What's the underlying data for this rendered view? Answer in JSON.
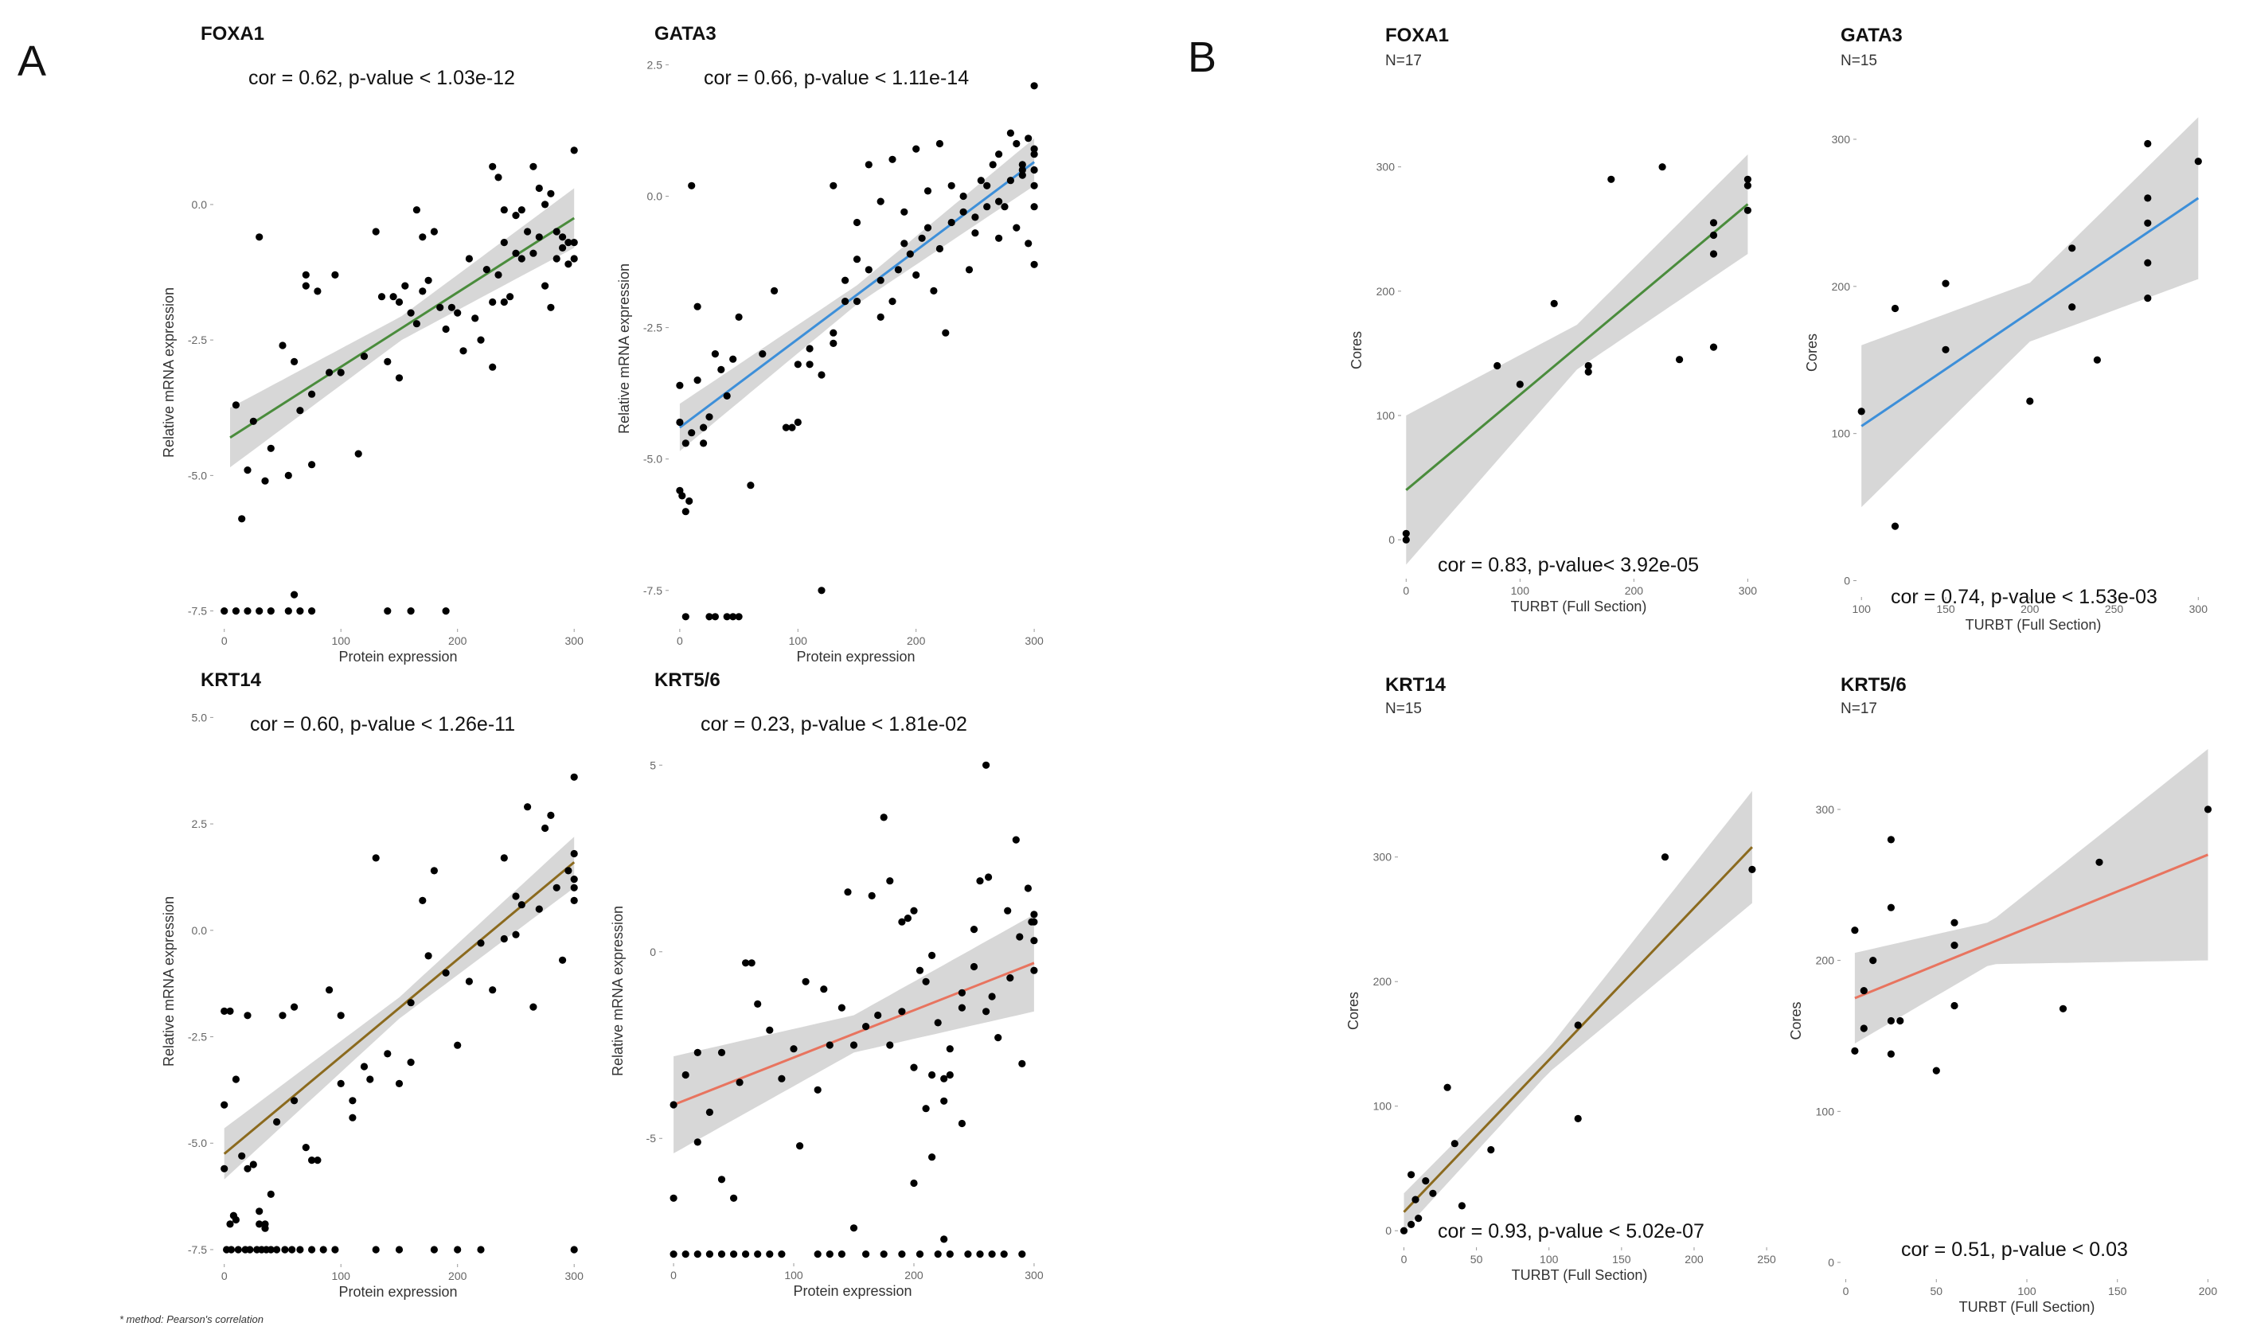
{
  "panel_letters": {
    "a": "A",
    "b": "B"
  },
  "footnote": "* method: Pearson's correlation",
  "chart_data": [
    {
      "id": "a1",
      "type": "scatter",
      "panel": "A",
      "title": "FOXA1",
      "n_label": "",
      "annotation": "cor = 0.62, p-value < 1.03e-12",
      "xlabel": "Protein expression",
      "ylabel": "Relative mRNA expression",
      "xlim": [
        -8,
        306
      ],
      "ylim": [
        -7.8,
        1.6
      ],
      "xticks": [
        0,
        100,
        200,
        300
      ],
      "yticks": [
        -7.5,
        -5.0,
        -2.5,
        0.0
      ],
      "xtick_labels": [
        "0",
        "100",
        "200",
        "300"
      ],
      "ytick_labels": [
        "-7.5",
        "-5.0",
        "-2.5",
        "0.0"
      ],
      "fit": {
        "x0": 5,
        "y0": -4.3,
        "x1": 300,
        "y1": -0.25,
        "band_x": [
          5,
          152,
          300
        ],
        "band_half": [
          0.55,
          0.22,
          0.55
        ],
        "color": "#4a8c3c"
      },
      "x": [
        10,
        20,
        25,
        30,
        40,
        50,
        60,
        65,
        70,
        80,
        90,
        100,
        120,
        130,
        140,
        150,
        160,
        170,
        180,
        190,
        200,
        210,
        220,
        230,
        240,
        250,
        260,
        270,
        280,
        290,
        300,
        300,
        15,
        35,
        55,
        75,
        95,
        115,
        135,
        145,
        155,
        165,
        175,
        185,
        195,
        205,
        215,
        225,
        235,
        245,
        255,
        265,
        275,
        285,
        295,
        60,
        70,
        75,
        230,
        235,
        240,
        250,
        255,
        265,
        270,
        275,
        280,
        285,
        290,
        295,
        300,
        150,
        165,
        170,
        230,
        240,
        0,
        10,
        20,
        30,
        40,
        55,
        65,
        75,
        140,
        160,
        190
      ],
      "y": [
        -3.7,
        -4.9,
        -4.0,
        -0.6,
        -4.5,
        -2.6,
        -2.9,
        -3.8,
        -1.3,
        -1.6,
        -3.1,
        -3.1,
        -2.8,
        -0.5,
        -2.9,
        -1.8,
        -2.0,
        -1.6,
        -0.5,
        -2.3,
        -2.0,
        -1.0,
        -2.5,
        -1.8,
        -0.1,
        -0.9,
        -0.5,
        -0.6,
        -1.9,
        -0.6,
        -0.7,
        1.0,
        -5.8,
        -5.1,
        -5.0,
        -4.8,
        -1.3,
        -4.6,
        -1.7,
        -1.7,
        -1.5,
        -2.2,
        -1.4,
        -1.9,
        -1.9,
        -2.7,
        -2.1,
        -1.2,
        -1.3,
        -1.7,
        -1.0,
        -0.9,
        -1.5,
        -1.0,
        -0.7,
        -7.2,
        -1.5,
        -3.5,
        0.7,
        0.5,
        -0.7,
        -0.2,
        -0.1,
        0.7,
        0.3,
        0.0,
        0.2,
        -0.5,
        -0.8,
        -1.1,
        -1.0,
        -3.2,
        -0.1,
        -0.6,
        -3.0,
        -1.8,
        -7.5,
        -7.5,
        -7.5,
        -7.5,
        -7.5,
        -7.5,
        -7.5,
        -7.5,
        -7.5,
        -7.5,
        -7.5
      ]
    },
    {
      "id": "a2",
      "type": "scatter",
      "panel": "A",
      "title": "GATA3",
      "n_label": "",
      "annotation": "cor = 0.66, p-value < 1.11e-14",
      "xlabel": "Protein expression",
      "ylabel": "Relative mRNA expression",
      "xlim": [
        -8,
        306
      ],
      "ylim": [
        -8.2,
        2.4
      ],
      "xticks": [
        0,
        100,
        200,
        300
      ],
      "yticks": [
        -7.5,
        -5.0,
        -2.5,
        0.0,
        2.5
      ],
      "xtick_labels": [
        "0",
        "100",
        "200",
        "300"
      ],
      "ytick_labels": [
        "-7.5",
        "-5.0",
        "-2.5",
        "0.0",
        "2.5"
      ],
      "fit": {
        "x0": 0,
        "y0": -4.4,
        "x1": 300,
        "y1": 0.65,
        "band_x": [
          0,
          150,
          300
        ],
        "band_half": [
          0.45,
          0.18,
          0.45
        ],
        "color": "#3d8fd9"
      },
      "x": [
        0,
        0,
        5,
        10,
        15,
        20,
        25,
        30,
        35,
        40,
        45,
        50,
        60,
        70,
        80,
        90,
        100,
        110,
        120,
        130,
        140,
        150,
        160,
        170,
        180,
        190,
        200,
        210,
        220,
        230,
        240,
        250,
        260,
        270,
        280,
        290,
        300,
        300,
        300,
        300,
        0,
        2,
        5,
        8,
        95,
        100,
        120,
        140,
        160,
        180,
        200,
        220,
        240,
        260,
        270,
        280,
        290,
        295,
        300,
        130,
        150,
        170,
        190,
        210,
        230,
        250,
        270,
        285,
        295,
        300,
        110,
        130,
        150,
        170,
        185,
        195,
        205,
        215,
        225,
        245,
        255,
        265,
        275,
        285,
        290,
        300,
        5,
        10,
        15,
        20,
        25,
        30,
        40,
        45,
        50
      ],
      "y": [
        -3.6,
        -4.3,
        -4.7,
        -4.5,
        -3.5,
        -4.4,
        -4.2,
        -3.0,
        -3.3,
        -3.8,
        -3.1,
        -2.3,
        -5.5,
        -3.0,
        -1.8,
        -4.4,
        -3.2,
        -2.9,
        -3.4,
        -2.6,
        -2.0,
        -1.2,
        -1.4,
        -1.6,
        -2.0,
        -0.9,
        -1.5,
        -0.6,
        -1.0,
        -0.5,
        -0.3,
        -0.7,
        0.2,
        -0.1,
        0.3,
        0.5,
        0.8,
        0.5,
        0.2,
        -0.2,
        -5.6,
        -5.7,
        -6.0,
        -5.8,
        -4.4,
        -4.3,
        -7.5,
        -1.6,
        0.6,
        0.7,
        0.9,
        1.0,
        0.0,
        -0.2,
        0.8,
        1.2,
        0.6,
        1.1,
        2.1,
        0.2,
        -0.5,
        -0.1,
        -0.3,
        0.1,
        0.2,
        -0.4,
        -0.8,
        -0.6,
        -0.9,
        -1.3,
        -3.2,
        -2.8,
        -2.0,
        -2.3,
        -1.4,
        -1.1,
        -0.8,
        -1.8,
        -2.6,
        -1.4,
        0.3,
        0.6,
        -0.2,
        1.0,
        0.4,
        0.9,
        -8.0,
        0.2,
        -2.1,
        -4.7,
        -8.0,
        -8.0,
        -8.0,
        -8.0,
        -8.0
      ]
    },
    {
      "id": "a3",
      "type": "scatter",
      "panel": "A",
      "title": "KRT14",
      "n_label": "",
      "annotation": "cor = 0.60, p-value < 1.26e-11",
      "xlabel": "Protein expression",
      "ylabel": "Relative mRNA expression",
      "xlim": [
        -8,
        306
      ],
      "ylim": [
        -7.8,
        5.4
      ],
      "xticks": [
        0,
        100,
        200,
        300
      ],
      "yticks": [
        -7.5,
        -5.0,
        -2.5,
        0.0,
        2.5,
        5.0
      ],
      "xtick_labels": [
        "0",
        "100",
        "200",
        "300"
      ],
      "ytick_labels": [
        "-7.5",
        "-5.0",
        "-2.5",
        "0.0",
        "2.5",
        "5.0"
      ],
      "fit": {
        "x0": 0,
        "y0": -5.25,
        "x1": 300,
        "y1": 1.6,
        "band_x": [
          0,
          150,
          300
        ],
        "band_half": [
          0.6,
          0.25,
          0.6
        ],
        "color": "#8b6a1e"
      },
      "x": [
        0,
        0,
        5,
        8,
        10,
        15,
        20,
        25,
        30,
        35,
        40,
        45,
        50,
        60,
        70,
        80,
        90,
        100,
        110,
        120,
        130,
        140,
        150,
        160,
        170,
        180,
        190,
        200,
        210,
        220,
        230,
        240,
        250,
        260,
        270,
        280,
        290,
        300,
        300,
        300,
        0,
        5,
        10,
        20,
        30,
        35,
        60,
        75,
        100,
        110,
        125,
        160,
        175,
        240,
        250,
        255,
        265,
        275,
        285,
        295,
        300,
        300,
        2,
        6,
        12,
        18,
        22,
        28,
        32,
        36,
        40,
        45,
        52,
        58,
        65,
        75,
        85,
        95,
        130,
        150,
        180,
        200,
        220,
        300
      ],
      "y": [
        -4.1,
        -5.6,
        -6.9,
        -6.7,
        -6.8,
        -5.3,
        -5.6,
        -5.5,
        -6.6,
        -6.9,
        -6.2,
        -4.5,
        -2.0,
        -4.0,
        -5.1,
        -5.4,
        -1.4,
        -3.6,
        -4.0,
        -3.2,
        1.7,
        -2.9,
        -3.6,
        -1.7,
        0.7,
        1.4,
        -1.0,
        -2.7,
        -1.2,
        -0.3,
        -1.4,
        1.7,
        -0.1,
        2.9,
        0.5,
        2.7,
        -0.7,
        1.0,
        1.2,
        3.6,
        -1.9,
        -1.9,
        -3.5,
        -2.0,
        -6.9,
        -7.0,
        -1.8,
        -5.4,
        -2.0,
        -4.4,
        -3.5,
        -3.1,
        -0.6,
        -0.2,
        0.8,
        0.6,
        -1.8,
        2.4,
        1.0,
        1.4,
        1.8,
        0.7,
        -7.5,
        -7.5,
        -7.5,
        -7.5,
        -7.5,
        -7.5,
        -7.5,
        -7.5,
        -7.5,
        -7.5,
        -7.5,
        -7.5,
        -7.5,
        -7.5,
        -7.5,
        -7.5,
        -7.5,
        -7.5,
        -7.5,
        -7.5,
        -7.5,
        -7.5
      ]
    },
    {
      "id": "a4",
      "type": "scatter",
      "panel": "A",
      "title": "KRT5/6",
      "n_label": "",
      "annotation": "cor = 0.23, p-value < 1.81e-02",
      "xlabel": "Protein expression",
      "ylabel": "Relative mRNA expression",
      "xlim": [
        -8,
        306
      ],
      "ylim": [
        -8.3,
        6.2
      ],
      "xticks": [
        0,
        100,
        200,
        300
      ],
      "yticks": [
        -5,
        0,
        5
      ],
      "xtick_labels": [
        "0",
        "100",
        "200",
        "300"
      ],
      "ytick_labels": [
        "-5",
        "0",
        "5"
      ],
      "fit": {
        "x0": 0,
        "y0": -4.1,
        "x1": 300,
        "y1": -0.3,
        "band_x": [
          0,
          150,
          300
        ],
        "band_half": [
          1.3,
          0.5,
          1.3
        ],
        "color": "#e8745f"
      },
      "x": [
        0,
        0,
        10,
        20,
        30,
        40,
        50,
        55,
        60,
        65,
        70,
        80,
        90,
        100,
        110,
        120,
        125,
        130,
        140,
        150,
        160,
        170,
        180,
        190,
        200,
        205,
        210,
        215,
        220,
        225,
        230,
        240,
        250,
        260,
        265,
        270,
        280,
        290,
        300,
        300,
        300,
        300,
        20,
        40,
        105,
        145,
        180,
        195,
        240,
        255,
        285,
        295,
        150,
        165,
        175,
        190,
        200,
        215,
        230,
        250,
        262,
        278,
        288,
        298,
        0,
        10,
        20,
        30,
        40,
        50,
        60,
        70,
        80,
        90,
        120,
        130,
        140,
        160,
        175,
        190,
        205,
        220,
        230,
        245,
        255,
        265,
        275,
        290,
        210,
        225,
        240,
        200,
        215,
        225,
        260
      ],
      "y": [
        -4.1,
        -6.6,
        -3.3,
        -2.7,
        -4.3,
        -2.7,
        -6.6,
        -3.5,
        -0.3,
        -0.3,
        -1.4,
        -2.1,
        -3.4,
        -2.6,
        -0.8,
        -3.7,
        -1.0,
        -2.5,
        -1.5,
        -2.5,
        -2.0,
        -1.7,
        -2.5,
        -1.6,
        -3.1,
        -0.5,
        -0.8,
        -0.1,
        -1.9,
        -3.4,
        -2.6,
        -1.1,
        -0.4,
        -1.6,
        -1.2,
        -2.3,
        -0.7,
        -3.0,
        -0.5,
        0.3,
        0.8,
        1.0,
        -5.1,
        -6.1,
        -5.2,
        1.6,
        1.9,
        0.9,
        -1.5,
        1.9,
        3.0,
        1.7,
        -7.4,
        1.5,
        3.6,
        0.8,
        1.1,
        -3.3,
        -3.3,
        0.6,
        2.0,
        1.1,
        0.4,
        0.8,
        -8.1,
        -8.1,
        -8.1,
        -8.1,
        -8.1,
        -8.1,
        -8.1,
        -8.1,
        -8.1,
        -8.1,
        -8.1,
        -8.1,
        -8.1,
        -8.1,
        -8.1,
        -8.1,
        -8.1,
        -8.1,
        -8.1,
        -8.1,
        -8.1,
        -8.1,
        -8.1,
        -8.1,
        -4.2,
        -4.0,
        -4.6,
        -6.2,
        -5.5,
        -7.7,
        5.0
      ]
    },
    {
      "id": "b1",
      "type": "scatter",
      "panel": "B",
      "title": "FOXA1",
      "n_label": "N=17",
      "annotation": "cor = 0.83, p-value< 3.92e-05",
      "xlabel": "TURBT (Full Section)",
      "ylabel": "Cores",
      "xlim": [
        -3,
        306
      ],
      "ylim": [
        -30,
        335
      ],
      "xticks": [
        0,
        100,
        200,
        300
      ],
      "yticks": [
        0,
        100,
        200,
        300
      ],
      "xtick_labels": [
        "0",
        "100",
        "200",
        "300"
      ],
      "ytick_labels": [
        "0",
        "100",
        "200",
        "300"
      ],
      "fit": {
        "x0": 0,
        "y0": 40,
        "x1": 300,
        "y1": 270,
        "band_x": [
          0,
          150,
          300
        ],
        "band_half": [
          60,
          18,
          40
        ],
        "color": "#4a8c3c"
      },
      "x": [
        0,
        0,
        80,
        100,
        130,
        160,
        160,
        180,
        225,
        240,
        270,
        270,
        270,
        270,
        300,
        300,
        300
      ],
      "y": [
        0,
        5,
        140,
        125,
        190,
        140,
        135,
        290,
        300,
        145,
        255,
        245,
        230,
        155,
        290,
        285,
        265
      ]
    },
    {
      "id": "b2",
      "type": "scatter",
      "panel": "B",
      "title": "GATA3",
      "n_label": "N=15",
      "annotation": "cor = 0.74, p-value < 1.53e-03",
      "xlabel": "TURBT (Full Section)",
      "ylabel": "Cores",
      "xlim": [
        98,
        306
      ],
      "ylim": [
        -10,
        320
      ],
      "xticks": [
        100,
        150,
        200,
        250,
        300
      ],
      "yticks": [
        0,
        100,
        200,
        300
      ],
      "xtick_labels": [
        "100",
        "150",
        "200",
        "250",
        "300"
      ],
      "ytick_labels": [
        "0",
        "100",
        "200",
        "300"
      ],
      "fit": {
        "x0": 100,
        "y0": 105,
        "x1": 300,
        "y1": 260,
        "band_x": [
          100,
          200,
          300
        ],
        "band_half": [
          55,
          20,
          55
        ],
        "color": "#3d8fd9"
      },
      "x": [
        100,
        120,
        120,
        150,
        150,
        200,
        225,
        225,
        240,
        270,
        270,
        270,
        270,
        270,
        300
      ],
      "y": [
        115,
        185,
        37,
        202,
        157,
        122,
        226,
        186,
        150,
        297,
        260,
        243,
        216,
        192,
        285
      ]
    },
    {
      "id": "b3",
      "type": "scatter",
      "panel": "B",
      "title": "KRT14",
      "n_label": "N=15",
      "annotation": "cor = 0.93, p-value < 5.02e-07",
      "xlabel": "TURBT (Full Section)",
      "ylabel": "Cores",
      "xlim": [
        -3,
        245
      ],
      "ylim": [
        -12,
        365
      ],
      "xticks": [
        0,
        50,
        100,
        150,
        200,
        250
      ],
      "yticks": [
        0,
        100,
        200,
        300
      ],
      "xtick_labels": [
        "0",
        "50",
        "100",
        "150",
        "200",
        "250"
      ],
      "ytick_labels": [
        "0",
        "100",
        "200",
        "300"
      ],
      "fit": {
        "x0": 0,
        "y0": 15,
        "x1": 240,
        "y1": 308,
        "band_x": [
          0,
          100,
          240
        ],
        "band_half": [
          15,
          10,
          45
        ],
        "color": "#8b6a1e"
      },
      "x": [
        0,
        5,
        8,
        10,
        15,
        20,
        30,
        35,
        40,
        60,
        120,
        120,
        180,
        240,
        5
      ],
      "y": [
        0,
        45,
        25,
        10,
        40,
        30,
        115,
        70,
        20,
        65,
        165,
        90,
        300,
        290,
        5
      ]
    },
    {
      "id": "b4",
      "type": "scatter",
      "panel": "B",
      "title": "KRT5/6",
      "n_label": "N=17",
      "annotation": "cor = 0.51, p-value < 0.03",
      "xlabel": "TURBT (Full Section)",
      "ylabel": "Cores",
      "xlim": [
        -2,
        202
      ],
      "ylim": [
        -10,
        330
      ],
      "xticks": [
        0,
        50,
        100,
        150,
        200
      ],
      "yticks": [
        0,
        100,
        200,
        300
      ],
      "xtick_labels": [
        "0",
        "50",
        "100",
        "150",
        "200"
      ],
      "ytick_labels": [
        "0",
        "100",
        "200",
        "300"
      ],
      "fit": {
        "x0": 5,
        "y0": 175,
        "x1": 200,
        "y1": 270,
        "band_x": [
          5,
          80,
          200
        ],
        "band_half": [
          30,
          14,
          70
        ],
        "color": "#e8745f"
      },
      "x": [
        5,
        5,
        10,
        10,
        15,
        25,
        25,
        25,
        25,
        50,
        60,
        60,
        60,
        120,
        140,
        200,
        30
      ],
      "y": [
        220,
        140,
        180,
        155,
        200,
        280,
        235,
        160,
        138,
        127,
        225,
        210,
        170,
        168,
        265,
        300,
        160
      ]
    }
  ]
}
